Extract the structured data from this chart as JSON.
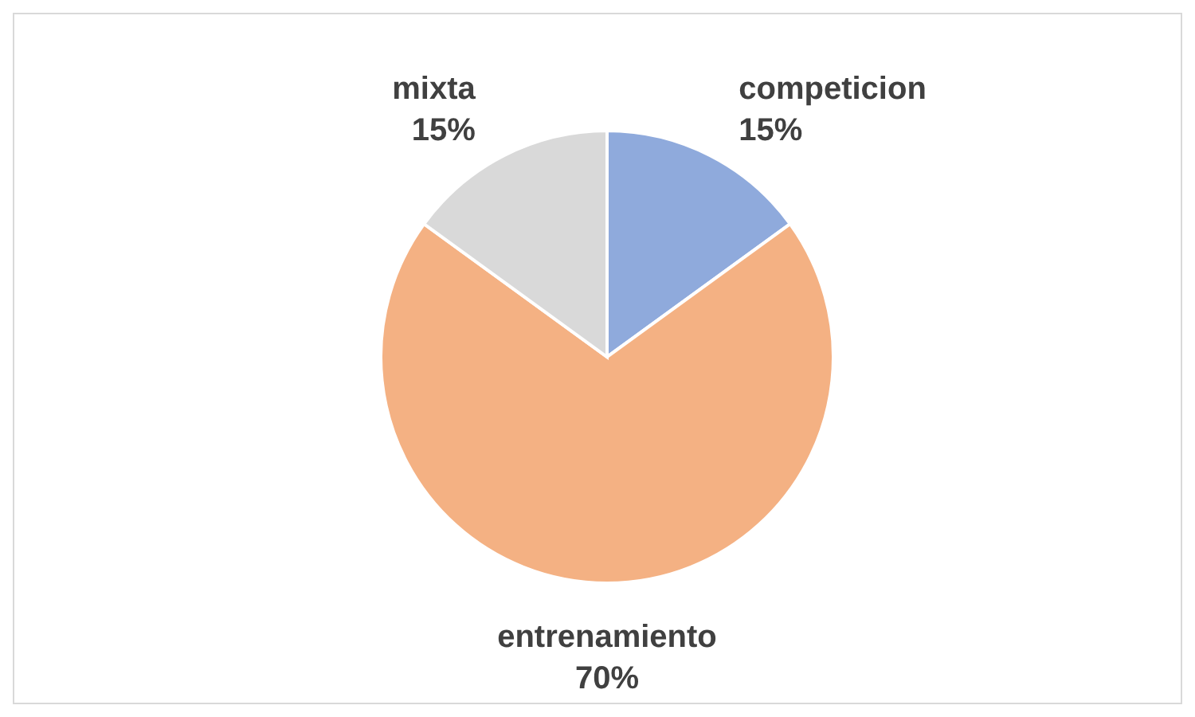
{
  "chart_data": {
    "type": "pie",
    "categories": [
      "competicion",
      "entrenamiento",
      "mixta"
    ],
    "values": [
      15,
      70,
      15
    ],
    "value_labels": [
      "15%",
      "70%",
      "15%"
    ],
    "colors": [
      "#8faadc",
      "#f4b183",
      "#d9d9d9"
    ]
  }
}
